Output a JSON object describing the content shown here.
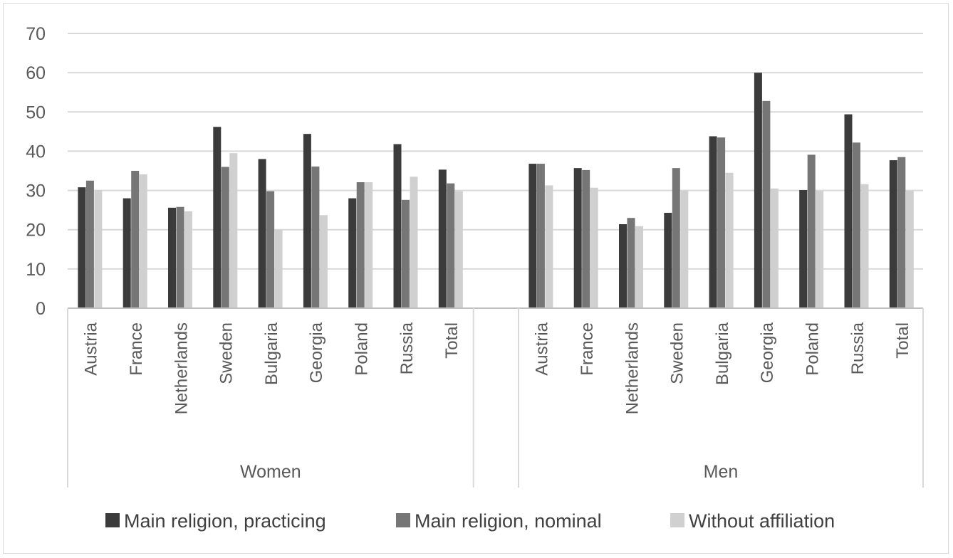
{
  "chart_data": {
    "type": "bar",
    "title": "",
    "xlabel": "",
    "ylabel": "",
    "ylim": [
      0,
      70
    ],
    "yticks": [
      0,
      10,
      20,
      30,
      40,
      50,
      60,
      70
    ],
    "grid": true,
    "legend_position": "bottom",
    "groups": [
      {
        "name": "Women",
        "categories": [
          "Austria",
          "France",
          "Netherlands",
          "Sweden",
          "Bulgaria",
          "Georgia",
          "Poland",
          "Russia",
          "Total"
        ],
        "series": [
          {
            "name": "Main religion, practicing",
            "values": [
              30.8,
              28.0,
              25.6,
              46.2,
              38.0,
              44.4,
              28.0,
              41.8,
              35.3
            ]
          },
          {
            "name": "Main religion, nominal",
            "values": [
              32.5,
              35.0,
              25.8,
              36.0,
              29.8,
              36.1,
              32.1,
              27.6,
              31.8
            ]
          },
          {
            "name": "Without affiliation",
            "values": [
              30.1,
              34.1,
              24.7,
              39.5,
              20.0,
              23.7,
              32.1,
              33.5,
              29.8
            ]
          }
        ]
      },
      {
        "name": "Men",
        "categories": [
          "Austria",
          "France",
          "Netherlands",
          "Sweden",
          "Bulgaria",
          "Georgia",
          "Poland",
          "Russia",
          "Total"
        ],
        "series": [
          {
            "name": "Main religion, practicing",
            "values": [
              36.8,
              35.7,
              21.4,
              24.3,
              43.8,
              60.0,
              30.1,
              49.4,
              37.7
            ]
          },
          {
            "name": "Main religion, nominal",
            "values": [
              36.8,
              35.2,
              23.0,
              35.7,
              43.5,
              52.8,
              39.1,
              42.2,
              38.5
            ]
          },
          {
            "name": "Without affiliation",
            "values": [
              31.3,
              30.7,
              20.9,
              30.0,
              34.5,
              30.5,
              29.9,
              31.6,
              29.9
            ]
          }
        ]
      }
    ],
    "colors": [
      "#3b3b3b",
      "#767676",
      "#d0d0d0"
    ]
  }
}
